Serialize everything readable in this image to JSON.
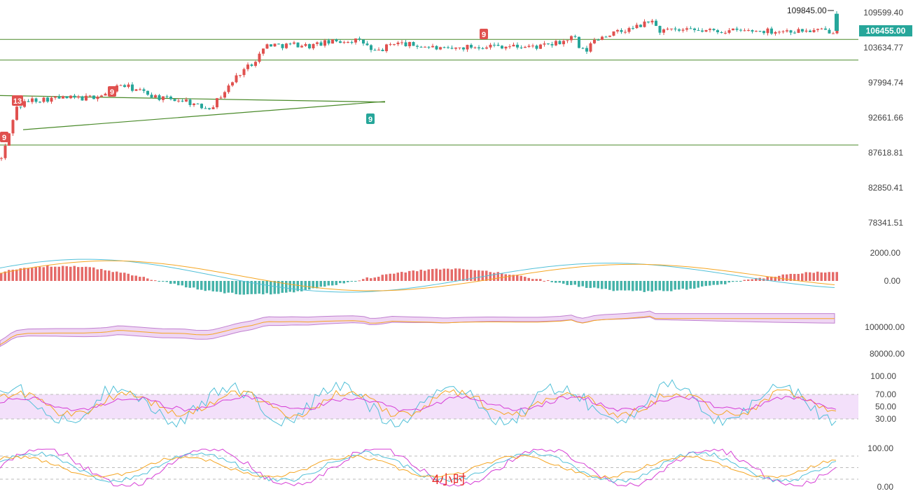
{
  "chart_data": {
    "type": "candlestick",
    "timeframe_label": "4小时",
    "colors": {
      "up": "#e0514f",
      "down": "#26a69a",
      "trendline": "#4a8a2a",
      "dif": "#52c0d8",
      "dea": "#f5a623",
      "ma_fill": "#e8c4ee",
      "rsi_band": "#f3e0fa",
      "k": "#52c0d8",
      "d": "#f5a623",
      "j": "#d63fd6"
    },
    "price_axis": {
      "ticks": [
        "109599.40",
        "103634.77",
        "97994.74",
        "92661.66",
        "87618.81",
        "82850.41",
        "78341.51"
      ],
      "log_scale": true
    },
    "current_price": "106455.00",
    "high_label": "109845.00",
    "horizontal_levels": [
      105000,
      101600,
      88700
    ],
    "td_markers": [
      {
        "label": "9",
        "color": "red"
      },
      {
        "label": "13",
        "color": "red"
      },
      {
        "label": "9",
        "color": "red"
      },
      {
        "label": "9",
        "color": "green"
      },
      {
        "label": "9",
        "color": "red"
      }
    ],
    "panels": {
      "macd": {
        "ticks": [
          "2000.00",
          "0.00"
        ]
      },
      "ma": {
        "ticks": [
          "100000.00",
          "80000.00"
        ]
      },
      "rsi": {
        "ticks": [
          "100.00",
          "70.00",
          "50.00",
          "30.00"
        ]
      },
      "kdj": {
        "ticks": [
          "100.00",
          "0.00"
        ]
      }
    }
  }
}
